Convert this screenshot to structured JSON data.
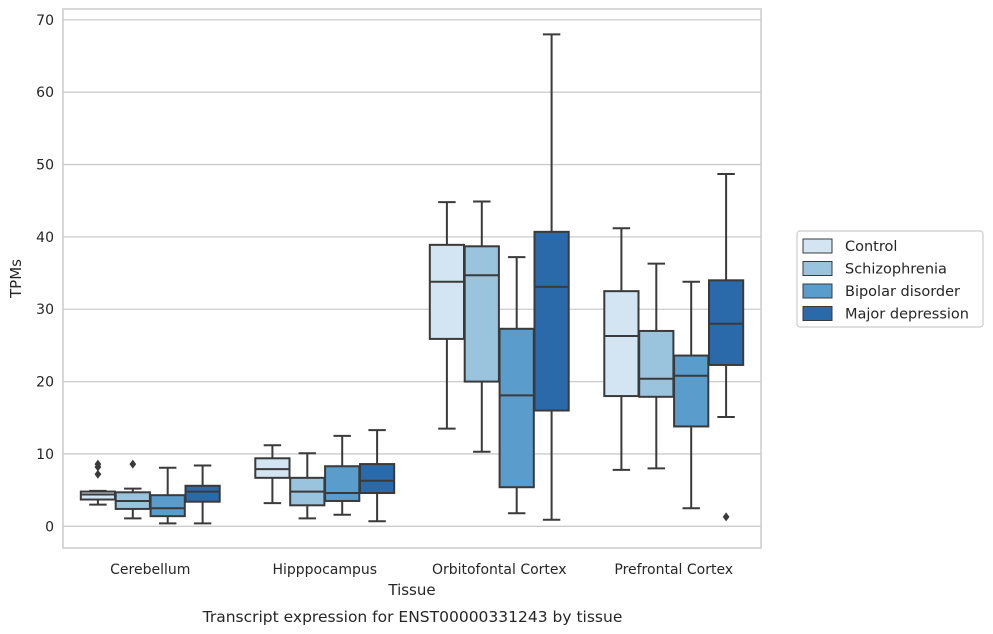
{
  "chart_data": {
    "type": "box",
    "xlabel": "Tissue",
    "ylabel": "TPMs",
    "caption": "Transcript expression for ENST00000331243 by tissue",
    "ylim": [
      -3,
      71.5
    ],
    "yticks": [
      0,
      10,
      20,
      30,
      40,
      50,
      60,
      70
    ],
    "grid": "horizontal",
    "legend_position": "right",
    "categories": [
      "Cerebellum",
      "Hipppocampus",
      "Orbitofontal Cortex",
      "Prefrontal Cortex"
    ],
    "series": [
      {
        "name": "Control",
        "color": "#d3e4f3",
        "boxes": [
          {
            "whislo": 3.0,
            "q1": 3.7,
            "med": 4.4,
            "q3": 4.8,
            "whishi": 4.9,
            "fliers": [
              7.2,
              8.2,
              8.6
            ]
          },
          {
            "whislo": 3.2,
            "q1": 6.7,
            "med": 7.9,
            "q3": 9.4,
            "whishi": 11.2,
            "fliers": []
          },
          {
            "whislo": 13.5,
            "q1": 25.9,
            "med": 33.8,
            "q3": 38.9,
            "whishi": 44.8,
            "fliers": []
          },
          {
            "whislo": 7.8,
            "q1": 18.0,
            "med": 26.3,
            "q3": 32.5,
            "whishi": 41.2,
            "fliers": []
          }
        ]
      },
      {
        "name": "Schizophrenia",
        "color": "#9ac3dd",
        "boxes": [
          {
            "whislo": 1.1,
            "q1": 2.4,
            "med": 3.5,
            "q3": 4.7,
            "whishi": 5.2,
            "fliers": [
              8.6
            ]
          },
          {
            "whislo": 1.1,
            "q1": 2.9,
            "med": 4.8,
            "q3": 6.7,
            "whishi": 10.1,
            "fliers": []
          },
          {
            "whislo": 10.3,
            "q1": 20.0,
            "med": 34.7,
            "q3": 38.7,
            "whishi": 44.9,
            "fliers": []
          },
          {
            "whislo": 8.0,
            "q1": 17.9,
            "med": 20.4,
            "q3": 27.0,
            "whishi": 36.3,
            "fliers": []
          }
        ]
      },
      {
        "name": "Bipolar disorder",
        "color": "#5a9dcc",
        "boxes": [
          {
            "whislo": 0.4,
            "q1": 1.4,
            "med": 2.5,
            "q3": 4.3,
            "whishi": 8.1,
            "fliers": []
          },
          {
            "whislo": 1.6,
            "q1": 3.5,
            "med": 4.6,
            "q3": 8.3,
            "whishi": 12.5,
            "fliers": []
          },
          {
            "whislo": 1.8,
            "q1": 5.4,
            "med": 18.1,
            "q3": 27.3,
            "whishi": 37.2,
            "fliers": []
          },
          {
            "whislo": 2.5,
            "q1": 13.8,
            "med": 20.8,
            "q3": 23.6,
            "whishi": 33.8,
            "fliers": []
          }
        ]
      },
      {
        "name": "Major depression",
        "color": "#2b6aaa",
        "boxes": [
          {
            "whislo": 0.4,
            "q1": 3.4,
            "med": 4.8,
            "q3": 5.6,
            "whishi": 8.4,
            "fliers": []
          },
          {
            "whislo": 0.7,
            "q1": 4.6,
            "med": 6.3,
            "q3": 8.6,
            "whishi": 13.3,
            "fliers": []
          },
          {
            "whislo": 0.9,
            "q1": 16.0,
            "med": 33.1,
            "q3": 40.7,
            "whishi": 68.0,
            "fliers": []
          },
          {
            "whislo": 15.1,
            "q1": 22.3,
            "med": 28.0,
            "q3": 34.0,
            "whishi": 48.7,
            "fliers": [
              1.3
            ]
          }
        ]
      }
    ]
  }
}
